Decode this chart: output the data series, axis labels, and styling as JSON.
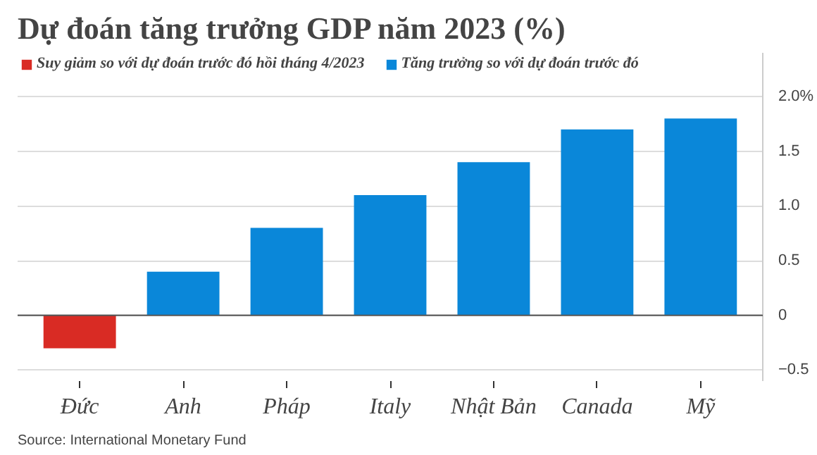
{
  "chart_data": {
    "type": "bar",
    "title": "Dự đoán tăng trưởng GDP năm 2023 (%)",
    "categories": [
      "Đức",
      "Anh",
      "Pháp",
      "Italy",
      "Nhật Bản",
      "Canada",
      "Mỹ"
    ],
    "series": [
      {
        "name": "Suy giảm so với dự đoán trước đó hồi tháng 4/2023",
        "color": "#d92b24",
        "values": [
          -0.3,
          null,
          null,
          null,
          null,
          null,
          null
        ]
      },
      {
        "name": "Tăng trưởng so với dự đoán trước đó",
        "color": "#0a87d9",
        "values": [
          null,
          0.4,
          0.8,
          1.1,
          1.4,
          1.7,
          1.8
        ]
      }
    ],
    "ylim": [
      -0.6,
      2.4
    ],
    "yticks": [
      -0.5,
      0,
      0.5,
      {
        "value": 1,
        "label": "1.0"
      },
      1.5,
      {
        "value": 2,
        "label": "2.0%"
      }
    ],
    "grid": "y",
    "legend": "top left",
    "annotations": [
      "Source: International Monetary Fund"
    ]
  }
}
